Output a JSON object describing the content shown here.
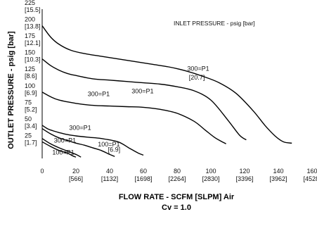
{
  "chart_data": {
    "type": "line",
    "title": "",
    "legend_title": "INLET PRESSURE - psig [bar]",
    "xlabel": "FLOW RATE - SCFM [SLPM] Air",
    "subtitle": "Cv = 1.0",
    "ylabel": "OUTLET PRESSURE - psig [bar]",
    "xlim": [
      0,
      160
    ],
    "ylim": [
      0,
      225
    ],
    "grid": false,
    "x_ticks": [
      {
        "value": 0,
        "label": "0",
        "sub": ""
      },
      {
        "value": 20,
        "label": "20",
        "sub": "[566]"
      },
      {
        "value": 40,
        "label": "40",
        "sub": "[1132]"
      },
      {
        "value": 60,
        "label": "60",
        "sub": "[1698]"
      },
      {
        "value": 80,
        "label": "80",
        "sub": "[2264]"
      },
      {
        "value": 100,
        "label": "100",
        "sub": "[2830]"
      },
      {
        "value": 120,
        "label": "120",
        "sub": "[3396]"
      },
      {
        "value": 140,
        "label": "140",
        "sub": "[3962]"
      },
      {
        "value": 160,
        "label": "160",
        "sub": "[4528]"
      }
    ],
    "y_ticks": [
      {
        "value": 25,
        "label": "25",
        "sub": "[1.7]"
      },
      {
        "value": 50,
        "label": "50",
        "sub": "[3.4]"
      },
      {
        "value": 75,
        "label": "75",
        "sub": "[5.2]"
      },
      {
        "value": 100,
        "label": "100",
        "sub": "[6.9]"
      },
      {
        "value": 125,
        "label": "125",
        "sub": "[8.6]"
      },
      {
        "value": 150,
        "label": "150",
        "sub": "[10.3]"
      },
      {
        "value": 175,
        "label": "175",
        "sub": "[12.1]"
      },
      {
        "value": 200,
        "label": "200",
        "sub": "[13.8]"
      },
      {
        "value": 225,
        "label": "225",
        "sub": "[15.5]"
      }
    ],
    "series": [
      {
        "x": [
          0,
          5,
          10,
          17,
          25,
          35,
          45,
          55,
          65,
          75,
          85,
          95,
          105,
          115,
          125,
          132,
          138,
          143,
          148
        ],
        "y": [
          200,
          183,
          172,
          163,
          158,
          154,
          150,
          146,
          142,
          138,
          132,
          124,
          114,
          98,
          72,
          50,
          34,
          25,
          23
        ]
      },
      {
        "x": [
          0,
          5,
          10,
          15,
          20,
          30,
          40,
          50,
          60,
          70,
          80,
          90,
          100,
          110,
          117,
          121
        ],
        "y": [
          150,
          140,
          133,
          128,
          125,
          120,
          118,
          116,
          114,
          112,
          108,
          102,
          88,
          58,
          35,
          28
        ]
      },
      {
        "x": [
          0,
          5,
          10,
          20,
          30,
          40,
          50,
          60,
          70,
          80,
          90,
          97,
          102,
          106,
          109
        ],
        "y": [
          100,
          93,
          88,
          83,
          80,
          79,
          78,
          77,
          74,
          68,
          56,
          42,
          32,
          26,
          22
        ]
      },
      {
        "x": [
          0,
          3,
          6,
          10,
          15,
          20,
          27,
          35,
          45,
          52,
          57,
          60
        ],
        "y": [
          50,
          45,
          42,
          39,
          36,
          34,
          32,
          30,
          25,
          15,
          8,
          5
        ]
      },
      {
        "x": [
          0,
          5,
          10,
          15,
          20,
          25,
          30,
          35,
          40,
          43
        ],
        "y": [
          45,
          37,
          31,
          27,
          23,
          20,
          16,
          12,
          6,
          3
        ]
      },
      {
        "x": [
          0,
          5,
          10,
          15,
          20,
          23
        ],
        "y": [
          30,
          22,
          16,
          11,
          6,
          2
        ]
      },
      {
        "x": [
          0,
          5,
          10,
          15,
          18,
          20
        ],
        "y": [
          25,
          18,
          12,
          8,
          4,
          2
        ]
      }
    ],
    "curve_labels": [
      {
        "text": "300=P1",
        "x": 86,
        "y": 132
      },
      {
        "text": "[20.7]",
        "x": 87,
        "y": 119
      },
      {
        "text": "300=P1",
        "x": 53,
        "y": 98
      },
      {
        "text": "300=P1",
        "x": 27,
        "y": 94
      },
      {
        "text": "300=P1",
        "x": 16,
        "y": 43
      },
      {
        "text": "300=P1",
        "x": 7,
        "y": 24
      },
      {
        "text": "100=P1",
        "x": 33,
        "y": 18
      },
      {
        "text": "[6.9]",
        "x": 39,
        "y": 10
      },
      {
        "text": "100=P1",
        "x": 6,
        "y": 6
      }
    ],
    "color": "#000000"
  }
}
